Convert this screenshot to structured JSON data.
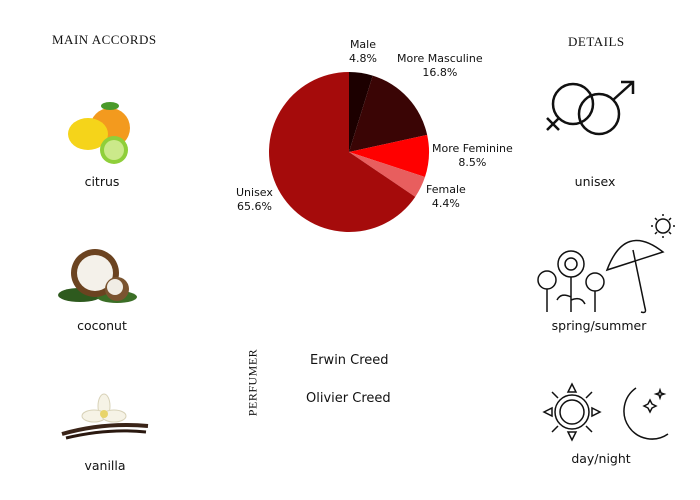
{
  "accords": {
    "title": "MAIN ACCORDS",
    "items": [
      {
        "label": "citrus",
        "icon": "citrus-icon"
      },
      {
        "label": "coconut",
        "icon": "coconut-icon"
      },
      {
        "label": "vanilla",
        "icon": "vanilla-icon"
      }
    ]
  },
  "details": {
    "title": "DETAILS",
    "items": [
      {
        "label": "unisex",
        "icon": "gender-symbols-icon"
      },
      {
        "label": "spring/summer",
        "icon": "flowers-umbrella-sun-icon"
      },
      {
        "label": "day/night",
        "icon": "sun-moon-icon"
      }
    ]
  },
  "perfumer": {
    "title": "PERFUMER",
    "names": [
      "Erwin Creed",
      "Olivier Creed"
    ]
  },
  "chart_data": {
    "type": "pie",
    "start": "top, clockwise",
    "slices": [
      {
        "label": "Male",
        "value": 4.8,
        "text": "4.8%",
        "color": "#1c0000"
      },
      {
        "label": "More Masculine",
        "value": 16.8,
        "text": "16.8%",
        "color": "#3a0505"
      },
      {
        "label": "More Feminine",
        "value": 8.5,
        "text": "8.5%",
        "color": "#ff0000"
      },
      {
        "label": "Female",
        "value": 4.4,
        "text": "4.4%",
        "color": "#e85e5e"
      },
      {
        "label": "Unisex",
        "value": 65.6,
        "text": "65.6%",
        "color": "#a50b0b"
      }
    ]
  }
}
